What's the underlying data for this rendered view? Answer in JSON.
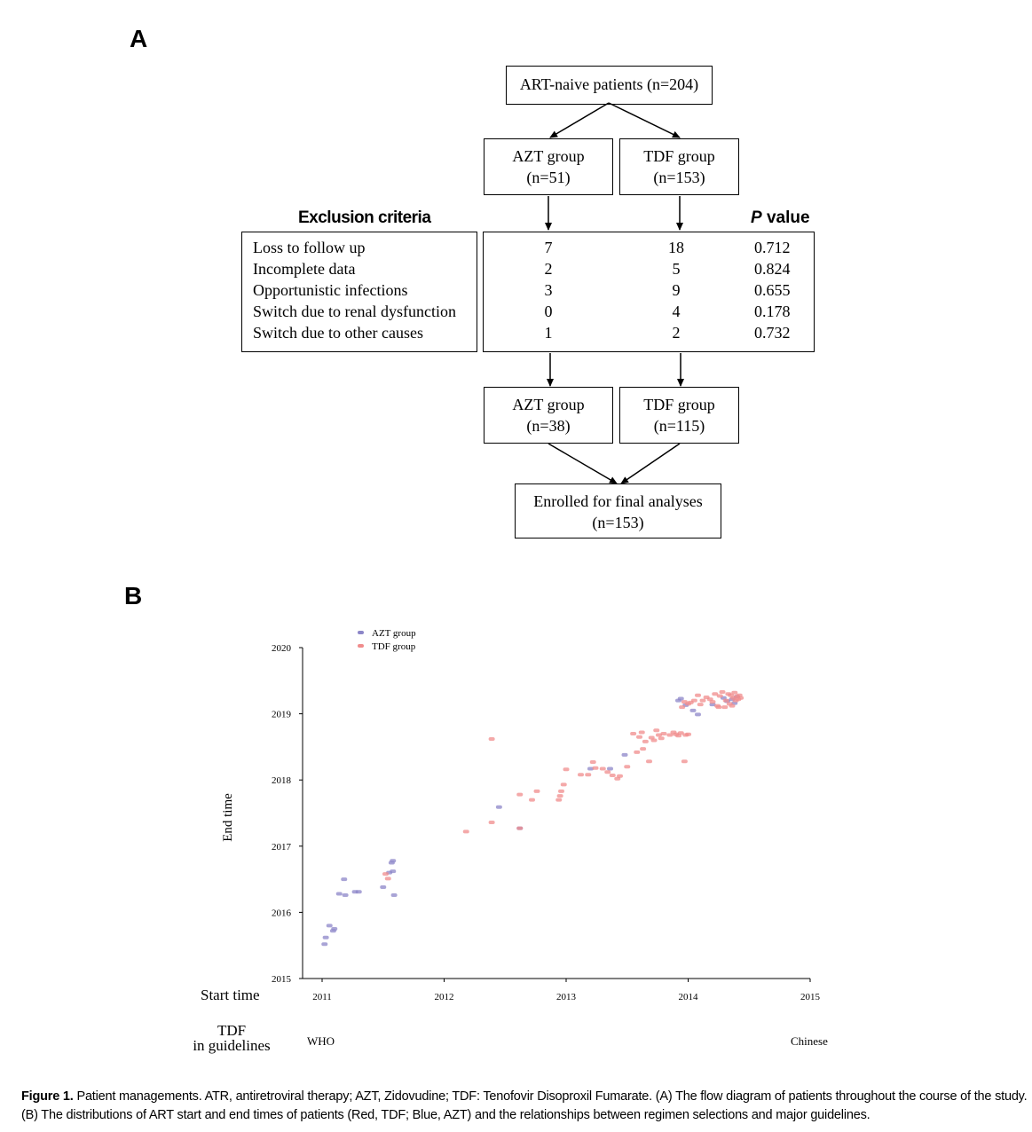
{
  "panel_a": {
    "label": "A",
    "top_box": "ART-naive patients (n=204)",
    "azt_initial": {
      "name": "AZT group",
      "n": "(n=51)"
    },
    "tdf_initial": {
      "name": "TDF group",
      "n": "(n=153)"
    },
    "exclusion_heading": "Exclusion criteria",
    "p_heading_italic": "P",
    "p_heading_rest": " value",
    "exclusions": [
      {
        "label": "Loss to follow up",
        "azt": "7",
        "tdf": "18",
        "p": "0.712"
      },
      {
        "label": "Incomplete data",
        "azt": "2",
        "tdf": "5",
        "p": "0.824"
      },
      {
        "label": "Opportunistic infections",
        "azt": "3",
        "tdf": "9",
        "p": "0.655"
      },
      {
        "label": "Switch due to renal dysfunction",
        "azt": "0",
        "tdf": "4",
        "p": "0.178"
      },
      {
        "label": "Switch due to other causes",
        "azt": "1",
        "tdf": "2",
        "p": "0.732"
      }
    ],
    "azt_final": {
      "name": "AZT group",
      "n": "(n=38)"
    },
    "tdf_final": {
      "name": "TDF group",
      "n": "(n=115)"
    },
    "enrolled": {
      "line1": "Enrolled for final analyses",
      "line2": "(n=153)"
    }
  },
  "panel_b": {
    "label": "B",
    "start_time_label": "Start time",
    "guidelines_label_1": "TDF",
    "guidelines_label_2": "in guidelines",
    "guideline_who": "WHO",
    "guideline_chinese": "Chinese"
  },
  "chart_data": {
    "type": "scatter",
    "xlabel": "",
    "ylabel": "End time",
    "x_ticks": [
      "2011",
      "2012",
      "2013",
      "2014",
      "2015"
    ],
    "y_ticks": [
      "2015",
      "2016",
      "2017",
      "2018",
      "2019",
      "2020"
    ],
    "xlim": [
      2011,
      2015
    ],
    "ylim": [
      2015,
      2020
    ],
    "legend_position": "top-left",
    "series": [
      {
        "name": "AZT group",
        "color": "#8c86c8",
        "points": [
          [
            2011.02,
            2015.52
          ],
          [
            2011.03,
            2015.62
          ],
          [
            2011.06,
            2015.8
          ],
          [
            2011.09,
            2015.72
          ],
          [
            2011.1,
            2015.75
          ],
          [
            2011.14,
            2016.28
          ],
          [
            2011.18,
            2016.5
          ],
          [
            2011.19,
            2016.26
          ],
          [
            2011.27,
            2016.31
          ],
          [
            2011.3,
            2016.31
          ],
          [
            2011.5,
            2016.38
          ],
          [
            2011.55,
            2016.6
          ],
          [
            2011.57,
            2016.75
          ],
          [
            2011.58,
            2016.78
          ],
          [
            2011.58,
            2016.62
          ],
          [
            2011.59,
            2016.26
          ],
          [
            2012.45,
            2017.59
          ],
          [
            2012.62,
            2017.27
          ],
          [
            2013.2,
            2018.17
          ],
          [
            2013.36,
            2018.17
          ],
          [
            2013.48,
            2018.38
          ],
          [
            2013.92,
            2019.2
          ],
          [
            2013.94,
            2019.23
          ],
          [
            2013.98,
            2019.13
          ],
          [
            2014.04,
            2019.05
          ],
          [
            2014.08,
            2018.99
          ],
          [
            2014.2,
            2019.14
          ],
          [
            2014.29,
            2019.24
          ],
          [
            2014.32,
            2019.19
          ],
          [
            2014.36,
            2019.22
          ],
          [
            2014.38,
            2019.16
          ],
          [
            2014.4,
            2019.26
          ]
        ]
      },
      {
        "name": "TDF group",
        "color": "#f08c8c",
        "points": [
          [
            2011.54,
            2016.51
          ],
          [
            2011.52,
            2016.58
          ],
          [
            2012.18,
            2017.22
          ],
          [
            2012.39,
            2018.62
          ],
          [
            2012.39,
            2017.36
          ],
          [
            2012.62,
            2017.27
          ],
          [
            2012.62,
            2017.78
          ],
          [
            2012.72,
            2017.7
          ],
          [
            2012.76,
            2017.83
          ],
          [
            2012.94,
            2017.7
          ],
          [
            2012.95,
            2017.76
          ],
          [
            2012.96,
            2017.83
          ],
          [
            2012.98,
            2017.93
          ],
          [
            2013.0,
            2018.16
          ],
          [
            2013.12,
            2018.08
          ],
          [
            2013.18,
            2018.08
          ],
          [
            2013.22,
            2018.27
          ],
          [
            2013.24,
            2018.18
          ],
          [
            2013.3,
            2018.17
          ],
          [
            2013.34,
            2018.12
          ],
          [
            2013.38,
            2018.07
          ],
          [
            2013.42,
            2018.02
          ],
          [
            2013.44,
            2018.06
          ],
          [
            2013.5,
            2018.2
          ],
          [
            2013.55,
            2018.7
          ],
          [
            2013.58,
            2018.42
          ],
          [
            2013.6,
            2018.65
          ],
          [
            2013.62,
            2018.72
          ],
          [
            2013.63,
            2018.47
          ],
          [
            2013.65,
            2018.58
          ],
          [
            2013.68,
            2018.28
          ],
          [
            2013.7,
            2018.64
          ],
          [
            2013.72,
            2018.6
          ],
          [
            2013.74,
            2018.75
          ],
          [
            2013.76,
            2018.68
          ],
          [
            2013.78,
            2018.63
          ],
          [
            2013.8,
            2018.7
          ],
          [
            2013.85,
            2018.68
          ],
          [
            2013.88,
            2018.72
          ],
          [
            2013.9,
            2018.69
          ],
          [
            2013.92,
            2018.67
          ],
          [
            2013.94,
            2018.71
          ],
          [
            2013.97,
            2018.28
          ],
          [
            2013.98,
            2018.68
          ],
          [
            2014.0,
            2018.69
          ],
          [
            2013.95,
            2019.1
          ],
          [
            2013.97,
            2019.18
          ],
          [
            2014.0,
            2019.15
          ],
          [
            2014.02,
            2019.17
          ],
          [
            2014.05,
            2019.2
          ],
          [
            2014.08,
            2019.28
          ],
          [
            2014.1,
            2019.14
          ],
          [
            2014.12,
            2019.2
          ],
          [
            2014.15,
            2019.25
          ],
          [
            2014.18,
            2019.22
          ],
          [
            2014.2,
            2019.18
          ],
          [
            2014.22,
            2019.3
          ],
          [
            2014.24,
            2019.12
          ],
          [
            2014.25,
            2019.1
          ],
          [
            2014.26,
            2019.27
          ],
          [
            2014.28,
            2019.33
          ],
          [
            2014.3,
            2019.1
          ],
          [
            2014.31,
            2019.2
          ],
          [
            2014.33,
            2019.3
          ],
          [
            2014.34,
            2019.15
          ],
          [
            2014.35,
            2019.28
          ],
          [
            2014.36,
            2019.12
          ],
          [
            2014.37,
            2019.24
          ],
          [
            2014.38,
            2019.32
          ],
          [
            2014.39,
            2019.2
          ],
          [
            2014.4,
            2019.26
          ],
          [
            2014.41,
            2019.22
          ],
          [
            2014.42,
            2019.28
          ],
          [
            2014.43,
            2019.24
          ]
        ]
      }
    ]
  },
  "caption": {
    "lead": "Figure 1.",
    "text": " Patient managements. ATR, antiretroviral therapy; AZT, Zidovudine; TDF:  Tenofovir Disoproxil Fumarate. (A) The flow diagram of patients throughout the course of the study. (B) The distributions of ART start and end times of patients (Red, TDF; Blue, AZT) and the relationships between regimen selections and major guidelines."
  }
}
